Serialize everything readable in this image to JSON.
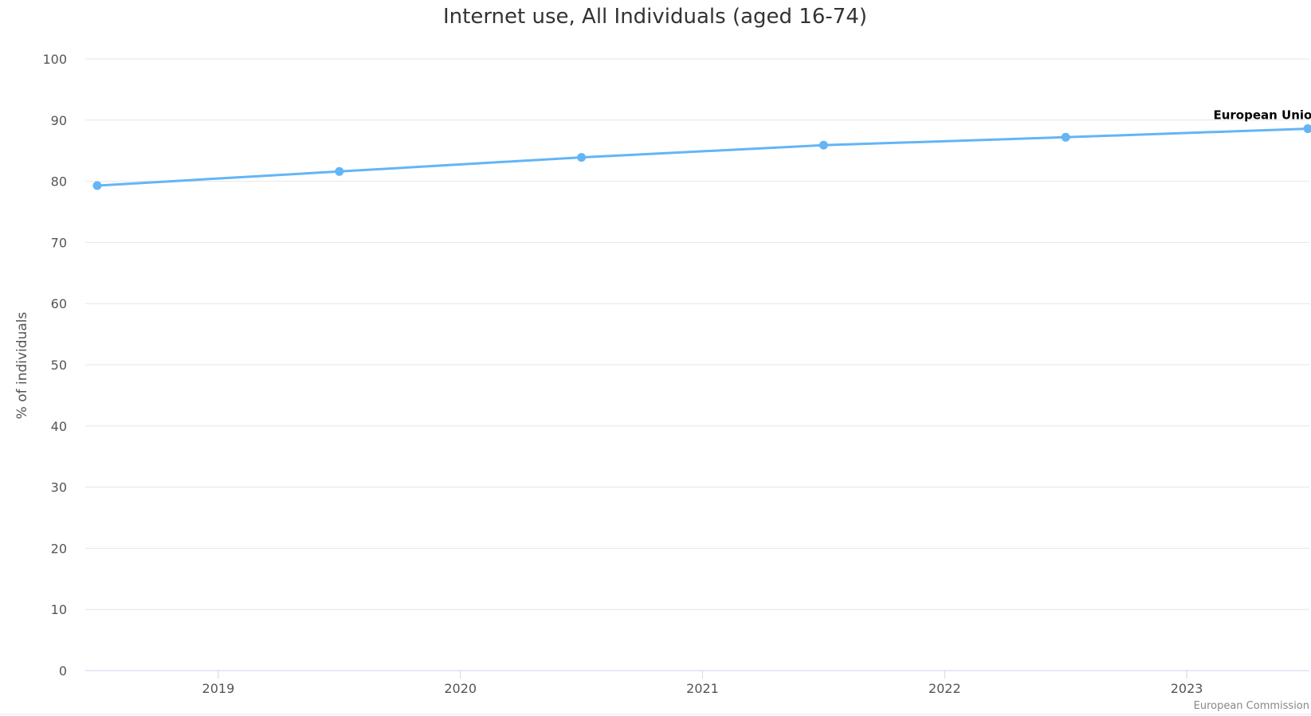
{
  "chart_data": {
    "type": "line",
    "title": "Internet use, All Individuals (aged 16-74)",
    "ylabel": "% of individuals",
    "xlabel": "",
    "ylim": [
      0,
      100
    ],
    "y_ticks": [
      "0",
      "10",
      "20",
      "30",
      "40",
      "50",
      "60",
      "70",
      "80",
      "90",
      "100"
    ],
    "x_tick_labels": [
      "2019",
      "2020",
      "2021",
      "2022",
      "2023"
    ],
    "grid": true,
    "series": [
      {
        "name": "European Union",
        "color": "#63b5f6",
        "x": [
          2018.5,
          2019.5,
          2020.5,
          2021.5,
          2022.5,
          2023.5
        ],
        "values": [
          79.3,
          81.6,
          83.9,
          85.9,
          87.2,
          88.6
        ]
      }
    ],
    "credits": "European Commission"
  }
}
